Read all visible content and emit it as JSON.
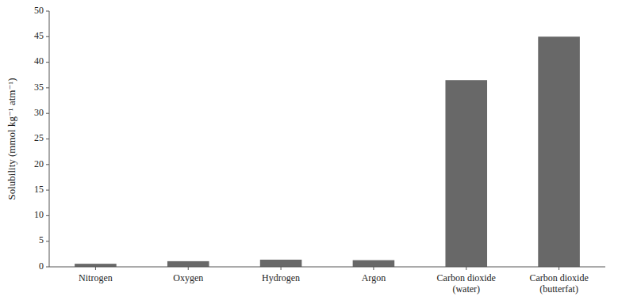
{
  "chart_data": {
    "type": "bar",
    "categories": [
      "Nitrogen",
      "Oxygen",
      "Hydrogen",
      "Argon",
      "Carbon dioxide\n(water)",
      "Carbon dioxide\n(butterfat)"
    ],
    "values": [
      0.6,
      1.1,
      1.4,
      1.3,
      36.5,
      45.0
    ],
    "color": "#686868",
    "ylabel": "Solubility (mmol kg⁻¹ atm⁻¹)",
    "ylim": [
      0,
      50
    ],
    "yticks": [
      0,
      5,
      10,
      15,
      20,
      25,
      30,
      35,
      40,
      45,
      50
    ],
    "grid": false
  }
}
